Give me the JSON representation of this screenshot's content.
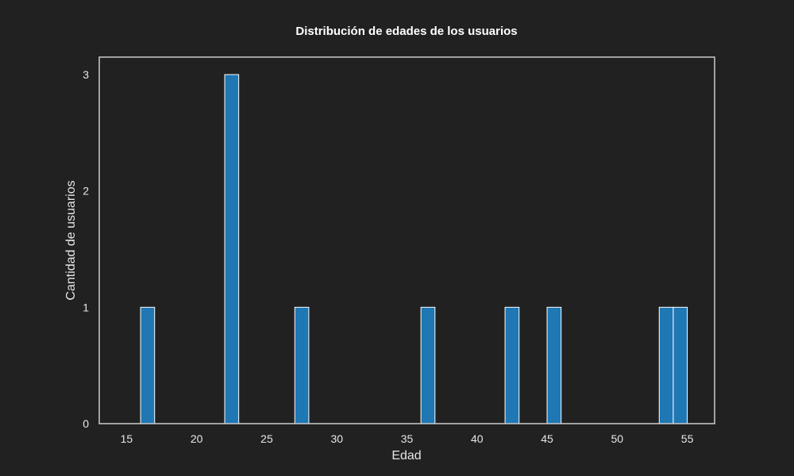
{
  "chart_data": {
    "type": "bar",
    "title": "Distribución de edades de los usuarios",
    "xlabel": "Edad",
    "ylabel": "Cantidad de usuarios",
    "xlim": [
      13.05,
      56.95
    ],
    "ylim": [
      0,
      3.15
    ],
    "x_ticks": [
      "15",
      "20",
      "25",
      "30",
      "35",
      "40",
      "45",
      "50",
      "55"
    ],
    "x_tick_values": [
      15,
      20,
      25,
      30,
      35,
      40,
      45,
      50,
      55
    ],
    "y_ticks": [
      "0",
      "1",
      "2",
      "3"
    ],
    "y_tick_values": [
      0,
      1,
      2,
      3
    ],
    "bin_width": 1,
    "bins": [
      {
        "start": 16,
        "end": 17,
        "count": 1
      },
      {
        "start": 22,
        "end": 23,
        "count": 3
      },
      {
        "start": 27,
        "end": 28,
        "count": 1
      },
      {
        "start": 36,
        "end": 37,
        "count": 1
      },
      {
        "start": 42,
        "end": 43,
        "count": 1
      },
      {
        "start": 45,
        "end": 46,
        "count": 1
      },
      {
        "start": 53,
        "end": 54,
        "count": 1
      },
      {
        "start": 54,
        "end": 55,
        "count": 1
      }
    ],
    "grid": false,
    "colors": {
      "background": "#212121",
      "bar_fill": "#1f77b4",
      "bar_edge": "#ffffff",
      "axes_frame": "#cccccc",
      "text": "#ffffff"
    }
  }
}
